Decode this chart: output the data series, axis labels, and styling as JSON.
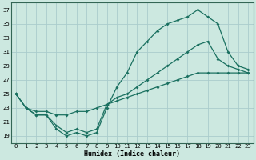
{
  "xlabel": "Humidex (Indice chaleur)",
  "bg_color": "#cce8e0",
  "grid_color": "#aacccc",
  "line_color": "#1a7060",
  "xlim": [
    -0.5,
    23.5
  ],
  "ylim": [
    18,
    38
  ],
  "xticks": [
    0,
    1,
    2,
    3,
    4,
    5,
    6,
    7,
    8,
    9,
    10,
    11,
    12,
    13,
    14,
    15,
    16,
    17,
    18,
    19,
    20,
    21,
    22,
    23
  ],
  "yticks": [
    19,
    21,
    23,
    25,
    27,
    29,
    31,
    33,
    35,
    37
  ],
  "line1_y": [
    25,
    23,
    22,
    22,
    20,
    19,
    19.5,
    19,
    19.5,
    23,
    26,
    28,
    31,
    32.5,
    34,
    35,
    35.5,
    36,
    37,
    36,
    35,
    31,
    29,
    28.5
  ],
  "line2_y": [
    25,
    23,
    22,
    22,
    20.5,
    19.5,
    20,
    19.5,
    20,
    23.5,
    24.5,
    25,
    26,
    27,
    28,
    29,
    30,
    31,
    32,
    32.5,
    30,
    29,
    28.5,
    28
  ],
  "line3_y": [
    25,
    23,
    22.5,
    22.5,
    22,
    22,
    22.5,
    22.5,
    23,
    23.5,
    24,
    24.5,
    25,
    25.5,
    26,
    26.5,
    27,
    27.5,
    28,
    28,
    28,
    28,
    28,
    28
  ]
}
